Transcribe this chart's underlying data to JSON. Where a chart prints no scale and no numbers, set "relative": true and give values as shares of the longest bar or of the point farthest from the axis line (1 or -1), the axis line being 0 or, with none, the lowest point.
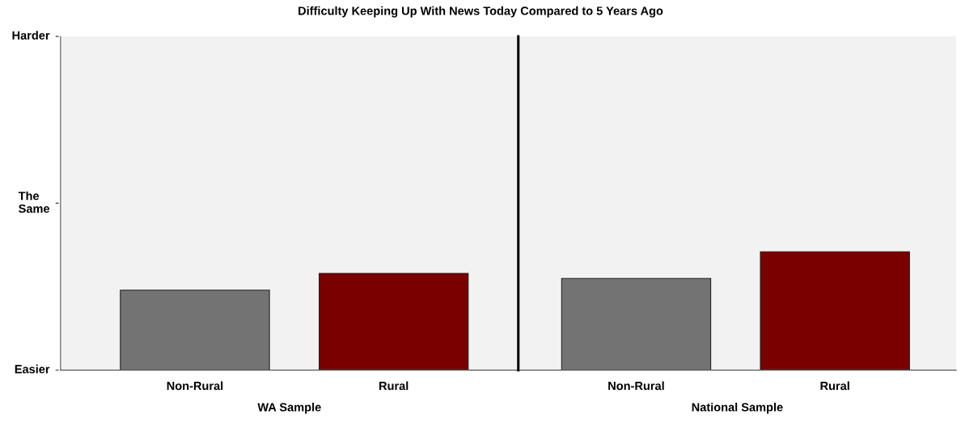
{
  "chart_data": {
    "type": "bar",
    "title": "Difficulty Keeping Up With News Today Compared to 5 Years Ago",
    "categories": [
      "Non-Rural",
      "Rural",
      "Non-Rural",
      "Rural"
    ],
    "values": [
      0.676,
      0.817,
      0.775,
      1
    ],
    "colors": [
      "#737373",
      "#7a0000",
      "#737373",
      "#7a0000"
    ],
    "relative": true,
    "annotations": [
      "Easier",
      "The\nSame",
      "Harder",
      "WA Sample",
      "National Sample"
    ]
  }
}
